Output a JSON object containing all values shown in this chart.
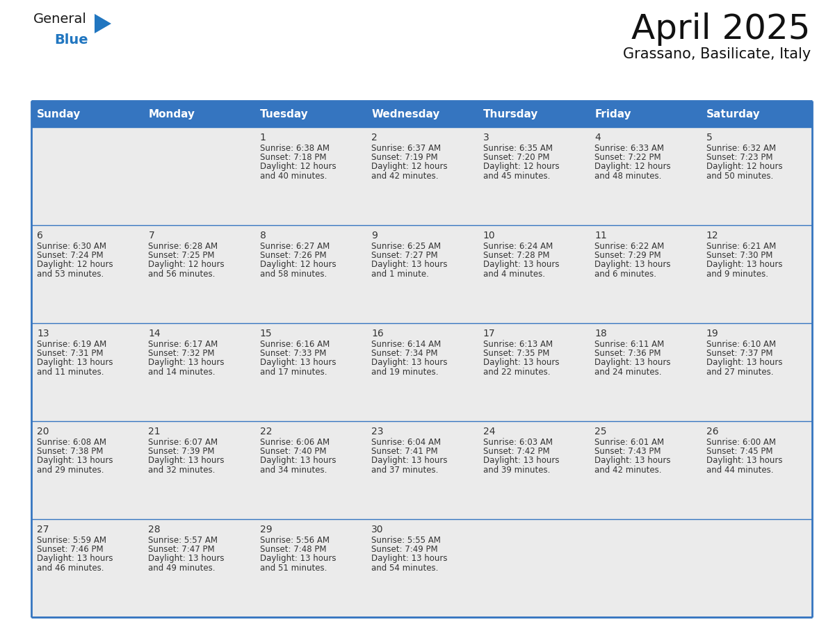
{
  "title": "April 2025",
  "subtitle": "Grassano, Basilicate, Italy",
  "header_bg": "#3575C0",
  "header_text_color": "#FFFFFF",
  "cell_bg": "#EBEBEB",
  "border_color": "#3575C0",
  "text_color": "#333333",
  "day_names": [
    "Sunday",
    "Monday",
    "Tuesday",
    "Wednesday",
    "Thursday",
    "Friday",
    "Saturday"
  ],
  "days": [
    {
      "day": 1,
      "col": 2,
      "row": 0,
      "sunrise": "6:38 AM",
      "sunset": "7:18 PM",
      "daylight_l1": "Daylight: 12 hours",
      "daylight_l2": "and 40 minutes."
    },
    {
      "day": 2,
      "col": 3,
      "row": 0,
      "sunrise": "6:37 AM",
      "sunset": "7:19 PM",
      "daylight_l1": "Daylight: 12 hours",
      "daylight_l2": "and 42 minutes."
    },
    {
      "day": 3,
      "col": 4,
      "row": 0,
      "sunrise": "6:35 AM",
      "sunset": "7:20 PM",
      "daylight_l1": "Daylight: 12 hours",
      "daylight_l2": "and 45 minutes."
    },
    {
      "day": 4,
      "col": 5,
      "row": 0,
      "sunrise": "6:33 AM",
      "sunset": "7:22 PM",
      "daylight_l1": "Daylight: 12 hours",
      "daylight_l2": "and 48 minutes."
    },
    {
      "day": 5,
      "col": 6,
      "row": 0,
      "sunrise": "6:32 AM",
      "sunset": "7:23 PM",
      "daylight_l1": "Daylight: 12 hours",
      "daylight_l2": "and 50 minutes."
    },
    {
      "day": 6,
      "col": 0,
      "row": 1,
      "sunrise": "6:30 AM",
      "sunset": "7:24 PM",
      "daylight_l1": "Daylight: 12 hours",
      "daylight_l2": "and 53 minutes."
    },
    {
      "day": 7,
      "col": 1,
      "row": 1,
      "sunrise": "6:28 AM",
      "sunset": "7:25 PM",
      "daylight_l1": "Daylight: 12 hours",
      "daylight_l2": "and 56 minutes."
    },
    {
      "day": 8,
      "col": 2,
      "row": 1,
      "sunrise": "6:27 AM",
      "sunset": "7:26 PM",
      "daylight_l1": "Daylight: 12 hours",
      "daylight_l2": "and 58 minutes."
    },
    {
      "day": 9,
      "col": 3,
      "row": 1,
      "sunrise": "6:25 AM",
      "sunset": "7:27 PM",
      "daylight_l1": "Daylight: 13 hours",
      "daylight_l2": "and 1 minute."
    },
    {
      "day": 10,
      "col": 4,
      "row": 1,
      "sunrise": "6:24 AM",
      "sunset": "7:28 PM",
      "daylight_l1": "Daylight: 13 hours",
      "daylight_l2": "and 4 minutes."
    },
    {
      "day": 11,
      "col": 5,
      "row": 1,
      "sunrise": "6:22 AM",
      "sunset": "7:29 PM",
      "daylight_l1": "Daylight: 13 hours",
      "daylight_l2": "and 6 minutes."
    },
    {
      "day": 12,
      "col": 6,
      "row": 1,
      "sunrise": "6:21 AM",
      "sunset": "7:30 PM",
      "daylight_l1": "Daylight: 13 hours",
      "daylight_l2": "and 9 minutes."
    },
    {
      "day": 13,
      "col": 0,
      "row": 2,
      "sunrise": "6:19 AM",
      "sunset": "7:31 PM",
      "daylight_l1": "Daylight: 13 hours",
      "daylight_l2": "and 11 minutes."
    },
    {
      "day": 14,
      "col": 1,
      "row": 2,
      "sunrise": "6:17 AM",
      "sunset": "7:32 PM",
      "daylight_l1": "Daylight: 13 hours",
      "daylight_l2": "and 14 minutes."
    },
    {
      "day": 15,
      "col": 2,
      "row": 2,
      "sunrise": "6:16 AM",
      "sunset": "7:33 PM",
      "daylight_l1": "Daylight: 13 hours",
      "daylight_l2": "and 17 minutes."
    },
    {
      "day": 16,
      "col": 3,
      "row": 2,
      "sunrise": "6:14 AM",
      "sunset": "7:34 PM",
      "daylight_l1": "Daylight: 13 hours",
      "daylight_l2": "and 19 minutes."
    },
    {
      "day": 17,
      "col": 4,
      "row": 2,
      "sunrise": "6:13 AM",
      "sunset": "7:35 PM",
      "daylight_l1": "Daylight: 13 hours",
      "daylight_l2": "and 22 minutes."
    },
    {
      "day": 18,
      "col": 5,
      "row": 2,
      "sunrise": "6:11 AM",
      "sunset": "7:36 PM",
      "daylight_l1": "Daylight: 13 hours",
      "daylight_l2": "and 24 minutes."
    },
    {
      "day": 19,
      "col": 6,
      "row": 2,
      "sunrise": "6:10 AM",
      "sunset": "7:37 PM",
      "daylight_l1": "Daylight: 13 hours",
      "daylight_l2": "and 27 minutes."
    },
    {
      "day": 20,
      "col": 0,
      "row": 3,
      "sunrise": "6:08 AM",
      "sunset": "7:38 PM",
      "daylight_l1": "Daylight: 13 hours",
      "daylight_l2": "and 29 minutes."
    },
    {
      "day": 21,
      "col": 1,
      "row": 3,
      "sunrise": "6:07 AM",
      "sunset": "7:39 PM",
      "daylight_l1": "Daylight: 13 hours",
      "daylight_l2": "and 32 minutes."
    },
    {
      "day": 22,
      "col": 2,
      "row": 3,
      "sunrise": "6:06 AM",
      "sunset": "7:40 PM",
      "daylight_l1": "Daylight: 13 hours",
      "daylight_l2": "and 34 minutes."
    },
    {
      "day": 23,
      "col": 3,
      "row": 3,
      "sunrise": "6:04 AM",
      "sunset": "7:41 PM",
      "daylight_l1": "Daylight: 13 hours",
      "daylight_l2": "and 37 minutes."
    },
    {
      "day": 24,
      "col": 4,
      "row": 3,
      "sunrise": "6:03 AM",
      "sunset": "7:42 PM",
      "daylight_l1": "Daylight: 13 hours",
      "daylight_l2": "and 39 minutes."
    },
    {
      "day": 25,
      "col": 5,
      "row": 3,
      "sunrise": "6:01 AM",
      "sunset": "7:43 PM",
      "daylight_l1": "Daylight: 13 hours",
      "daylight_l2": "and 42 minutes."
    },
    {
      "day": 26,
      "col": 6,
      "row": 3,
      "sunrise": "6:00 AM",
      "sunset": "7:45 PM",
      "daylight_l1": "Daylight: 13 hours",
      "daylight_l2": "and 44 minutes."
    },
    {
      "day": 27,
      "col": 0,
      "row": 4,
      "sunrise": "5:59 AM",
      "sunset": "7:46 PM",
      "daylight_l1": "Daylight: 13 hours",
      "daylight_l2": "and 46 minutes."
    },
    {
      "day": 28,
      "col": 1,
      "row": 4,
      "sunrise": "5:57 AM",
      "sunset": "7:47 PM",
      "daylight_l1": "Daylight: 13 hours",
      "daylight_l2": "and 49 minutes."
    },
    {
      "day": 29,
      "col": 2,
      "row": 4,
      "sunrise": "5:56 AM",
      "sunset": "7:48 PM",
      "daylight_l1": "Daylight: 13 hours",
      "daylight_l2": "and 51 minutes."
    },
    {
      "day": 30,
      "col": 3,
      "row": 4,
      "sunrise": "5:55 AM",
      "sunset": "7:49 PM",
      "daylight_l1": "Daylight: 13 hours",
      "daylight_l2": "and 54 minutes."
    }
  ],
  "num_rows": 5,
  "num_cols": 7,
  "logo_color_general": "#1a1a1a",
  "logo_color_blue": "#2176C0",
  "logo_triangle_color": "#2176C0",
  "title_fontsize": 36,
  "subtitle_fontsize": 15,
  "header_fontsize": 11,
  "day_num_fontsize": 10,
  "cell_text_fontsize": 8.5
}
